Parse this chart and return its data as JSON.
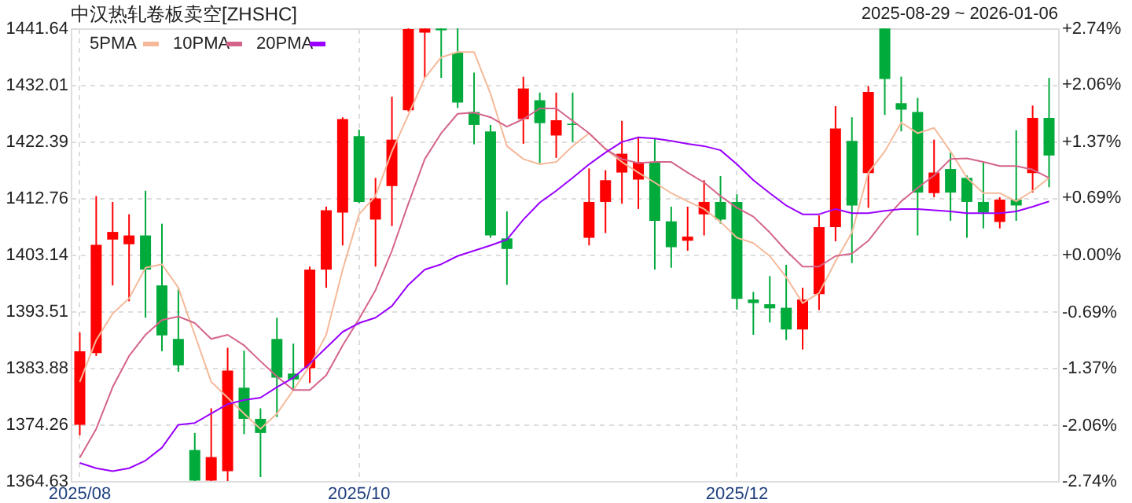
{
  "chart_data": {
    "type": "candlestick",
    "title": "中汉热轧卷板卖空[ZHSHC]",
    "subtitle": "2025-08-29 ~ 2026-01-06",
    "categories": [
      "2025/08",
      null,
      null,
      null,
      null,
      null,
      null,
      null,
      null,
      null,
      null,
      null,
      null,
      null,
      null,
      null,
      null,
      "2025/10",
      null,
      null,
      null,
      null,
      null,
      null,
      null,
      null,
      null,
      null,
      null,
      null,
      null,
      null,
      null,
      null,
      null,
      null,
      null,
      null,
      null,
      null,
      "2025/12",
      null,
      null,
      null,
      null,
      null,
      null,
      null,
      null,
      null,
      null,
      null,
      null,
      null,
      null,
      null,
      null,
      null,
      null,
      null
    ],
    "ohlc": [
      [
        1374.2,
        1389.9,
        1372.4,
        1386.7
      ],
      [
        1386.4,
        1413.1,
        1385.9,
        1404.8
      ],
      [
        1405.7,
        1412.1,
        1397.9,
        1407.0
      ],
      [
        1404.9,
        1410.0,
        1395.2,
        1406.4
      ],
      [
        1406.4,
        1414.0,
        1392.4,
        1400.6
      ],
      [
        1397.9,
        1408.4,
        1386.7,
        1389.4
      ],
      [
        1388.8,
        1397.3,
        1383.2,
        1384.3
      ],
      [
        1369.9,
        1372.8,
        1364.63,
        1364.7
      ],
      [
        1364.7,
        1377.0,
        1364.63,
        1368.7
      ],
      [
        1366.3,
        1387.3,
        1364.63,
        1383.4
      ],
      [
        1380.5,
        1386.8,
        1372.6,
        1375.2
      ],
      [
        1375.2,
        1377.0,
        1365.3,
        1372.8
      ],
      [
        1388.8,
        1392.4,
        1375.5,
        1382.2
      ],
      [
        1382.9,
        1388.0,
        1380.1,
        1381.9
      ],
      [
        1383.8,
        1401.1,
        1381.3,
        1400.6
      ],
      [
        1400.6,
        1411.3,
        1397.5,
        1410.7
      ],
      [
        1410.3,
        1426.5,
        1404.7,
        1426.2
      ],
      [
        1423.3,
        1424.4,
        1411.9,
        1412.1
      ],
      [
        1409.1,
        1416.2,
        1401.1,
        1412.7
      ],
      [
        1414.8,
        1430.0,
        1408.0,
        1422.7
      ],
      [
        1427.7,
        1441.64,
        1427.5,
        1441.5
      ],
      [
        1440.9,
        1441.64,
        1433.2,
        1441.6
      ],
      [
        1441.6,
        1441.64,
        1433.2,
        1441.3
      ],
      [
        1437.5,
        1441.64,
        1428.1,
        1429.0
      ],
      [
        1427.4,
        1434.1,
        1421.9,
        1425.2
      ],
      [
        1424.1,
        1425.2,
        1406.0,
        1406.4
      ],
      [
        1405.9,
        1410.5,
        1398.0,
        1404.1
      ],
      [
        1426.2,
        1433.4,
        1422.0,
        1431.4
      ],
      [
        1429.4,
        1430.7,
        1418.7,
        1425.5
      ],
      [
        1423.4,
        1430.7,
        1419.6,
        1426.0
      ],
      [
        1425.4,
        1430.7,
        1422.3,
        1425.2
      ],
      [
        1406.0,
        1417.8,
        1404.7,
        1412.1
      ],
      [
        1412.1,
        1417.5,
        1406.8,
        1415.8
      ],
      [
        1417.1,
        1425.9,
        1411.8,
        1420.3
      ],
      [
        1415.9,
        1423.2,
        1410.9,
        1418.9
      ],
      [
        1418.9,
        1422.9,
        1400.6,
        1408.9
      ],
      [
        1408.8,
        1411.3,
        1400.9,
        1404.4
      ],
      [
        1405.5,
        1411.3,
        1403.8,
        1406.2
      ],
      [
        1410.0,
        1415.8,
        1406.4,
        1412.1
      ],
      [
        1412.1,
        1416.5,
        1408.4,
        1409.1
      ],
      [
        1412.1,
        1413.4,
        1393.8,
        1395.6
      ],
      [
        1395.5,
        1396.8,
        1389.5,
        1394.9
      ],
      [
        1394.7,
        1399.5,
        1391.6,
        1394.0
      ],
      [
        1394.1,
        1401.4,
        1388.6,
        1390.4
      ],
      [
        1390.4,
        1397.5,
        1387.0,
        1395.5
      ],
      [
        1396.4,
        1409.8,
        1393.7,
        1407.8
      ],
      [
        1407.8,
        1428.4,
        1405.4,
        1424.6
      ],
      [
        1422.5,
        1426.5,
        1401.7,
        1411.5
      ],
      [
        1417.0,
        1431.8,
        1411.1,
        1430.8
      ],
      [
        1441.6,
        1441.64,
        1426.9,
        1433.0
      ],
      [
        1428.9,
        1433.4,
        1424.1,
        1427.8
      ],
      [
        1427.4,
        1429.8,
        1406.4,
        1413.7
      ],
      [
        1413.6,
        1422.7,
        1412.9,
        1417.1
      ],
      [
        1417.7,
        1420.5,
        1408.9,
        1413.7
      ],
      [
        1416.2,
        1416.6,
        1406.0,
        1412.1
      ],
      [
        1412.1,
        1418.9,
        1407.6,
        1410.3
      ],
      [
        1408.7,
        1412.9,
        1407.6,
        1412.5
      ],
      [
        1412.5,
        1424.3,
        1408.9,
        1411.5
      ],
      [
        1417.0,
        1428.5,
        1413.7,
        1426.4
      ],
      [
        1426.4,
        1433.2,
        1414.6,
        1420.0
      ]
    ],
    "colors": [
      "#ff0000",
      "#ff0000",
      "#ff0000",
      "#ff0000",
      "#00aa3b",
      "#00aa3b",
      "#00aa3b",
      "#00aa3b",
      "#ff0000",
      "#ff0000",
      "#00aa3b",
      "#00aa3b",
      "#00aa3b",
      "#00aa3b",
      "#ff0000",
      "#ff0000",
      "#ff0000",
      "#00aa3b",
      "#ff0000",
      "#ff0000",
      "#ff0000",
      "#ff0000",
      "#00aa3b",
      "#00aa3b",
      "#00aa3b",
      "#00aa3b",
      "#00aa3b",
      "#ff0000",
      "#00aa3b",
      "#ff0000",
      "#00aa3b",
      "#ff0000",
      "#ff0000",
      "#ff0000",
      "#ff0000",
      "#00aa3b",
      "#00aa3b",
      "#ff0000",
      "#ff0000",
      "#00aa3b",
      "#00aa3b",
      "#00aa3b",
      "#00aa3b",
      "#00aa3b",
      "#ff0000",
      "#ff0000",
      "#ff0000",
      "#00aa3b",
      "#ff0000",
      "#00aa3b",
      "#00aa3b",
      "#00aa3b",
      "#ff0000",
      "#00aa3b",
      "#00aa3b",
      "#00aa3b",
      "#ff0000",
      "#00aa3b",
      "#ff0000",
      "#00aa3b"
    ],
    "series": [
      {
        "name": "5PMA",
        "type": "line",
        "color": "#f5b99a",
        "values": [
          1381.5,
          1388.6,
          1393.1,
          1395.7,
          1400.9,
          1401.5,
          1397.5,
          1389.5,
          1381.5,
          1378.8,
          1376.1,
          1373.5,
          1376.1,
          1380.1,
          1384.2,
          1389.5,
          1400.6,
          1410.0,
          1413.1,
          1420.7,
          1426.9,
          1433.2,
          1436.7,
          1437.6,
          1437.6,
          1430.5,
          1421.6,
          1419.4,
          1418.5,
          1418.9,
          1421.6,
          1423.8,
          1421.1,
          1418.9,
          1417.1,
          1415.4,
          1413.6,
          1412.2,
          1410.9,
          1408.7,
          1406.0,
          1405.1,
          1402.9,
          1399.3,
          1394.9,
          1396.6,
          1402.0,
          1406.9,
          1417.1,
          1420.7,
          1425.6,
          1423.8,
          1424.7,
          1420.7,
          1416.2,
          1413.6,
          1413.6,
          1412.2,
          1414.0,
          1416.2
        ]
      },
      {
        "name": "10PMA",
        "type": "line",
        "color": "#d4648a",
        "values": [
          1368.6,
          1373.5,
          1380.6,
          1385.9,
          1389.5,
          1392.0,
          1392.6,
          1391.5,
          1388.8,
          1389.5,
          1387.7,
          1385.0,
          1382.4,
          1380.1,
          1380.1,
          1382.6,
          1387.7,
          1392.2,
          1397.1,
          1403.8,
          1411.8,
          1419.4,
          1423.8,
          1427.1,
          1427.3,
          1426.5,
          1424.9,
          1426.2,
          1428.0,
          1428.0,
          1425.9,
          1423.8,
          1421.1,
          1419.4,
          1418.7,
          1418.9,
          1418.9,
          1417.1,
          1415.4,
          1413.1,
          1411.1,
          1409.6,
          1406.9,
          1403.8,
          1401.1,
          1401.1,
          1402.9,
          1403.3,
          1405.5,
          1409.1,
          1412.2,
          1414.5,
          1416.6,
          1419.4,
          1419.5,
          1418.9,
          1418.2,
          1418.2,
          1417.6,
          1416.2
        ]
      },
      {
        "name": "20PMA",
        "type": "line",
        "color": "#9900ff",
        "values": [
          1367.7,
          1366.8,
          1366.3,
          1366.8,
          1368.1,
          1370.3,
          1374.2,
          1374.5,
          1376.1,
          1377.7,
          1378.4,
          1378.8,
          1380.6,
          1382.2,
          1384.6,
          1387.3,
          1390.0,
          1391.5,
          1392.4,
          1394.4,
          1398.0,
          1400.6,
          1401.5,
          1402.9,
          1403.8,
          1404.7,
          1405.7,
          1409.1,
          1412.0,
          1414.0,
          1416.2,
          1418.5,
          1420.5,
          1422.3,
          1423.1,
          1422.9,
          1422.5,
          1422.0,
          1421.6,
          1420.9,
          1418.5,
          1415.8,
          1413.6,
          1411.5,
          1410.0,
          1410.0,
          1410.9,
          1410.2,
          1410.2,
          1410.6,
          1410.9,
          1410.9,
          1410.7,
          1410.5,
          1410.2,
          1410.2,
          1410.2,
          1410.5,
          1411.3,
          1412.2
        ]
      }
    ],
    "ylim": [
      1364.63,
      1441.64
    ],
    "yticks": [
      1364.63,
      1374.26,
      1383.88,
      1393.51,
      1403.14,
      1412.76,
      1422.39,
      1432.01,
      1441.64
    ],
    "y2lim": [
      -2.74,
      2.74
    ],
    "y2ticks": [
      {
        "value": -2.74,
        "label": "-2.74%"
      },
      {
        "value": -2.06,
        "label": "-2.06%"
      },
      {
        "value": -1.37,
        "label": "-1.37%"
      },
      {
        "value": -0.69,
        "label": "-0.69%"
      },
      {
        "value": 0,
        "label": "+0.00%"
      },
      {
        "value": 0.69,
        "label": "+0.69%"
      },
      {
        "value": 1.37,
        "label": "+1.37%"
      },
      {
        "value": 2.06,
        "label": "+2.06%"
      },
      {
        "value": 2.74,
        "label": "+2.74%"
      }
    ],
    "grid": true,
    "legend": "top left"
  }
}
